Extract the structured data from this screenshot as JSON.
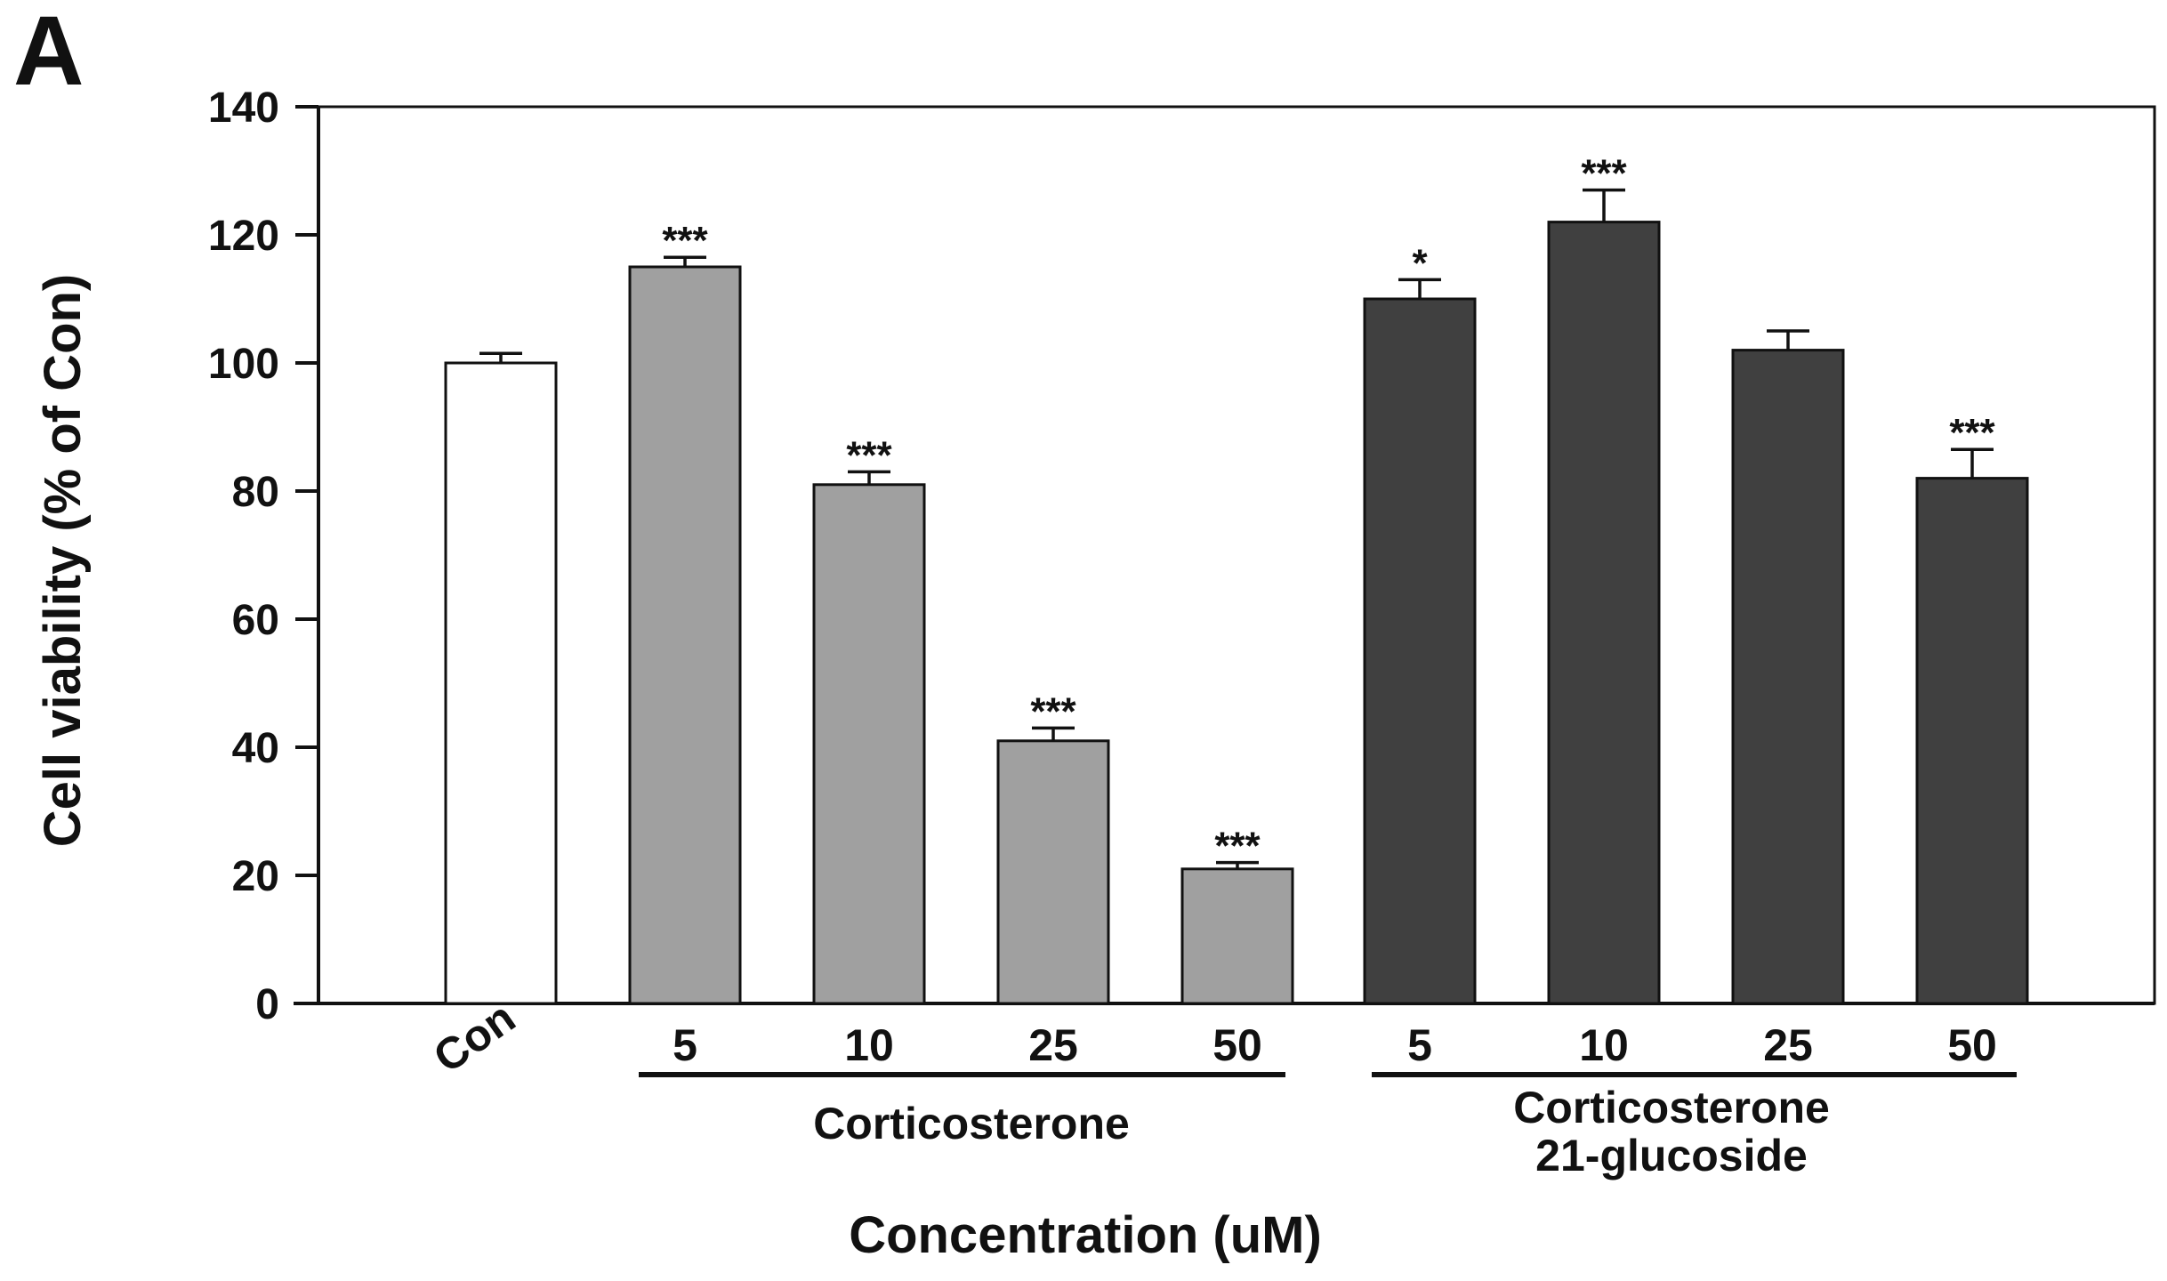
{
  "panel_label": "A",
  "chart_data": {
    "type": "bar",
    "title": "",
    "xlabel": "Concentration (uM)",
    "ylabel": "Cell viability (% of Con)",
    "ylim": [
      0,
      140
    ],
    "yticks": [
      "0",
      "20",
      "40",
      "60",
      "80",
      "100",
      "120",
      "140"
    ],
    "categories": [
      "Con",
      "5",
      "10",
      "25",
      "50",
      "5",
      "10",
      "25",
      "50"
    ],
    "values": [
      100,
      115,
      81,
      41,
      21,
      110,
      122,
      102,
      82
    ],
    "errors": [
      1.5,
      1.5,
      2,
      2,
      1,
      3,
      5,
      3,
      4.5
    ],
    "significance": [
      "",
      "***",
      "***",
      "***",
      "***",
      "*",
      "***",
      "",
      "***"
    ],
    "groups": [
      {
        "name": "Con",
        "indices": [
          0
        ],
        "color": "#ffffff"
      },
      {
        "name": "Corticosterone",
        "indices": [
          1,
          2,
          3,
          4
        ],
        "color": "#a0a0a0"
      },
      {
        "name": "Corticosterone 21-glucoside",
        "line1": "Corticosterone",
        "line2": "21-glucoside",
        "indices": [
          5,
          6,
          7,
          8
        ],
        "color": "#404040"
      }
    ]
  }
}
